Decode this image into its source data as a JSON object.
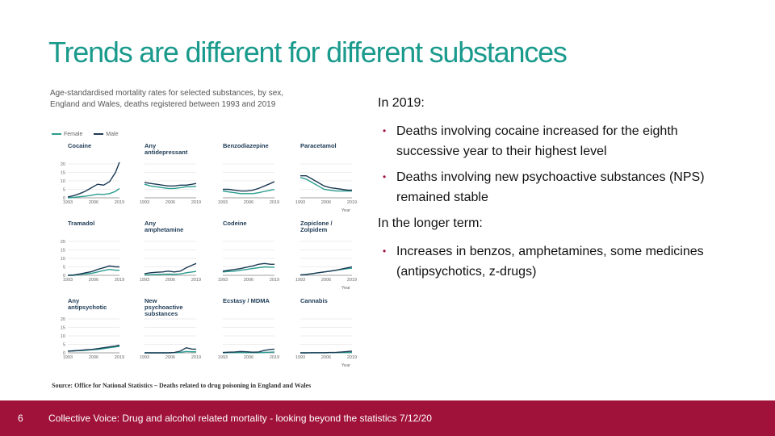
{
  "slide": {
    "title": "Trends are different for different substances",
    "title_color": "#1a9a8c",
    "accent_color": "#a0123a"
  },
  "figure": {
    "caption_line1": "Age-standardised mortality rates for selected substances, by sex,",
    "caption_line2": "England and Wales, deaths registered between 1993 and 2019",
    "legend": [
      {
        "label": "Female",
        "color": "#2a9d8f"
      },
      {
        "label": "Male",
        "color": "#1d3a55"
      }
    ],
    "source": "Source: Office for National Statistics – Deaths related to drug poisoning in England and Wales"
  },
  "chart_data": [
    {
      "type": "line",
      "title": "Cocaine",
      "x": [
        1993,
        1996,
        1999,
        2002,
        2005,
        2008,
        2011,
        2014,
        2017,
        2019
      ],
      "series": [
        {
          "name": "Female",
          "values": [
            0,
            0.3,
            0.6,
            1,
            1.5,
            2.2,
            2,
            2.5,
            3.8,
            5.5
          ]
        },
        {
          "name": "Male",
          "values": [
            0.5,
            1.3,
            2.5,
            4,
            6,
            8,
            7.5,
            9.5,
            15,
            21
          ]
        }
      ],
      "ylim": [
        0,
        20
      ]
    },
    {
      "type": "line",
      "title": "Any antidepressant",
      "x": [
        1993,
        1996,
        1999,
        2002,
        2005,
        2008,
        2011,
        2014,
        2017,
        2019
      ],
      "series": [
        {
          "name": "Female",
          "values": [
            8,
            7,
            6.5,
            6,
            5.5,
            5.5,
            6,
            6.5,
            6.5,
            6.8
          ]
        },
        {
          "name": "Male",
          "values": [
            9,
            8.5,
            8,
            7.5,
            7,
            7,
            7.5,
            7.5,
            8,
            8.5
          ]
        }
      ],
      "ylim": [
        0,
        20
      ]
    },
    {
      "type": "line",
      "title": "Benzodiazepine",
      "x": [
        1993,
        1996,
        1999,
        2002,
        2005,
        2008,
        2011,
        2014,
        2017,
        2019
      ],
      "series": [
        {
          "name": "Female",
          "values": [
            4,
            3.5,
            3,
            2.5,
            2.5,
            2.5,
            3,
            3.8,
            4.5,
            5
          ]
        },
        {
          "name": "Male",
          "values": [
            5,
            5,
            4.5,
            4,
            4,
            4.5,
            5.5,
            7,
            8.5,
            9.5
          ]
        }
      ],
      "ylim": [
        0,
        20
      ]
    },
    {
      "type": "line",
      "title": "Paracetamol",
      "x": [
        1993,
        1996,
        1999,
        2002,
        2005,
        2008,
        2011,
        2014,
        2017,
        2019
      ],
      "series": [
        {
          "name": "Female",
          "values": [
            12,
            11,
            9,
            7,
            5,
            4.5,
            4,
            4,
            4,
            4
          ]
        },
        {
          "name": "Male",
          "values": [
            13,
            13,
            11,
            9,
            7,
            6,
            5.5,
            5,
            4.5,
            4.5
          ]
        }
      ],
      "ylim": [
        0,
        20
      ]
    },
    {
      "type": "line",
      "title": "Tramadol",
      "x": [
        1993,
        1996,
        1999,
        2002,
        2005,
        2008,
        2011,
        2014,
        2017,
        2019
      ],
      "series": [
        {
          "name": "Female",
          "values": [
            0,
            0,
            0.5,
            0.8,
            1.2,
            2,
            2.8,
            3.5,
            3,
            3
          ]
        },
        {
          "name": "Male",
          "values": [
            0,
            0.2,
            0.8,
            1.5,
            2.2,
            3.5,
            4.5,
            5.5,
            5,
            5
          ]
        }
      ],
      "ylim": [
        0,
        20
      ]
    },
    {
      "type": "line",
      "title": "Any amphetamine",
      "x": [
        1993,
        1996,
        1999,
        2002,
        2005,
        2008,
        2011,
        2014,
        2017,
        2019
      ],
      "series": [
        {
          "name": "Female",
          "values": [
            0.3,
            0.4,
            0.5,
            0.6,
            0.7,
            0.6,
            0.8,
            1.5,
            2,
            2.3
          ]
        },
        {
          "name": "Male",
          "values": [
            1,
            1.5,
            1.8,
            2,
            2.5,
            2,
            2.5,
            4.5,
            6,
            7
          ]
        }
      ],
      "ylim": [
        0,
        20
      ]
    },
    {
      "type": "line",
      "title": "Codeine",
      "x": [
        1993,
        1996,
        1999,
        2002,
        2005,
        2008,
        2011,
        2014,
        2017,
        2019
      ],
      "series": [
        {
          "name": "Female",
          "values": [
            2,
            2.3,
            2.5,
            3,
            3.5,
            4,
            4.5,
            5,
            4.8,
            4.8
          ]
        },
        {
          "name": "Male",
          "values": [
            2.5,
            3,
            3.5,
            4,
            4.8,
            5.5,
            6.5,
            7,
            6.5,
            6.5
          ]
        }
      ],
      "ylim": [
        0,
        20
      ]
    },
    {
      "type": "line",
      "title": "Zopiclone / Zolpidem",
      "x": [
        1993,
        1996,
        1999,
        2002,
        2005,
        2008,
        2011,
        2014,
        2017,
        2019
      ],
      "series": [
        {
          "name": "Female",
          "values": [
            0.2,
            0.5,
            1,
            1.5,
            2,
            2.5,
            3,
            3.5,
            4,
            4.2
          ]
        },
        {
          "name": "Male",
          "values": [
            0.2,
            0.5,
            1,
            1.5,
            2,
            2.5,
            3,
            3.8,
            4.5,
            5
          ]
        }
      ],
      "ylim": [
        0,
        20
      ]
    },
    {
      "type": "line",
      "title": "Any antipsychotic",
      "x": [
        1993,
        1996,
        1999,
        2002,
        2005,
        2008,
        2011,
        2014,
        2017,
        2019
      ],
      "series": [
        {
          "name": "Female",
          "values": [
            1,
            1.2,
            1.3,
            1.5,
            1.8,
            2,
            2.5,
            3,
            3.5,
            3.8
          ]
        },
        {
          "name": "Male",
          "values": [
            1,
            1.2,
            1.5,
            1.8,
            2,
            2.5,
            3,
            3.5,
            4,
            4.5
          ]
        }
      ],
      "ylim": [
        0,
        20
      ]
    },
    {
      "type": "line",
      "title": "New psychoactive substances",
      "x": [
        1993,
        1996,
        1999,
        2002,
        2005,
        2008,
        2011,
        2014,
        2017,
        2019
      ],
      "series": [
        {
          "name": "Female",
          "values": [
            0,
            0,
            0,
            0,
            0,
            0.1,
            0.3,
            0.8,
            0.6,
            0.6
          ]
        },
        {
          "name": "Male",
          "values": [
            0,
            0,
            0,
            0,
            0,
            0.2,
            1,
            3,
            2.2,
            2.2
          ]
        }
      ],
      "ylim": [
        0,
        20
      ]
    },
    {
      "type": "line",
      "title": "Ecstasy / MDMA",
      "x": [
        1993,
        1996,
        1999,
        2002,
        2005,
        2008,
        2011,
        2014,
        2017,
        2019
      ],
      "series": [
        {
          "name": "Female",
          "values": [
            0,
            0.1,
            0.1,
            0.2,
            0.1,
            0.1,
            0.1,
            0.3,
            0.4,
            0.5
          ]
        },
        {
          "name": "Male",
          "values": [
            0.2,
            0.4,
            0.5,
            0.8,
            0.6,
            0.4,
            0.5,
            1.5,
            2,
            2.2
          ]
        }
      ],
      "ylim": [
        0,
        20
      ]
    },
    {
      "type": "line",
      "title": "Cannabis",
      "x": [
        1993,
        1996,
        1999,
        2002,
        2005,
        2008,
        2011,
        2014,
        2017,
        2019
      ],
      "series": [
        {
          "name": "Female",
          "values": [
            0,
            0,
            0,
            0,
            0,
            0.1,
            0.1,
            0.2,
            0.2,
            0.3
          ]
        },
        {
          "name": "Male",
          "values": [
            0,
            0,
            0.1,
            0.1,
            0.1,
            0.2,
            0.3,
            0.5,
            0.8,
            1
          ]
        }
      ],
      "ylim": [
        0,
        20
      ]
    }
  ],
  "axis": {
    "y_ticks": [
      "0",
      "5",
      "10",
      "15",
      "20"
    ],
    "x_ticks": [
      "1993",
      "2006",
      "2019"
    ],
    "year_label": "Year"
  },
  "right_panel": {
    "heading_2019": "In 2019:",
    "bullets_2019": [
      "Deaths involving cocaine increased for the eighth successive year to their highest level",
      "Deaths involving new psychoactive substances (NPS) remained stable"
    ],
    "heading_longer": "In the longer term:",
    "bullets_longer": [
      "Increases in benzos, amphetamines, some medicines (antipsychotics, z-drugs)"
    ],
    "bullet_char": "•"
  },
  "footer": {
    "page_number": "6",
    "text": "Collective Voice: Drug and alcohol related mortality - looking beyond the statistics 7/12/20",
    "bg_color": "#a0123a"
  }
}
